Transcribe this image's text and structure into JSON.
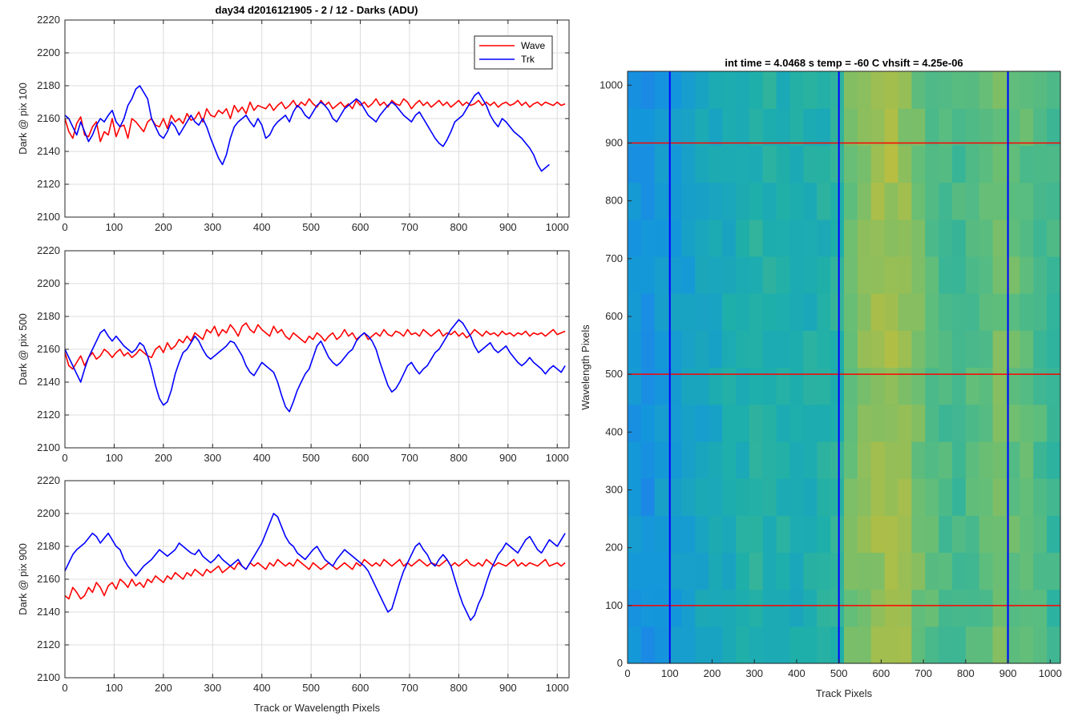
{
  "figure_title": "day34 d2016121905 - 2 / 12 - Darks (ADU)",
  "colors": {
    "wave": "#ff0000",
    "trk": "#0000ff",
    "grid": "#dcdcdc",
    "axis": "#262626"
  },
  "chart_data": [
    {
      "type": "line",
      "panel": "top-left",
      "title": "day34 d2016121905 - 2 / 12 - Darks (ADU)",
      "xlabel": "",
      "ylabel": "Dark @ pix 100",
      "xlim": [
        0,
        1024
      ],
      "ylim": [
        2100,
        2220
      ],
      "xticks": [
        0,
        100,
        200,
        300,
        400,
        500,
        600,
        700,
        800,
        900,
        1000
      ],
      "yticks": [
        2100,
        2120,
        2140,
        2160,
        2180,
        2200,
        2220
      ],
      "grid": true,
      "legend": {
        "location": "top-right",
        "entries": [
          "Wave",
          "Trk"
        ]
      },
      "series": [
        {
          "name": "Wave",
          "color": "#ff0000",
          "x_start": 0,
          "x_step": 8,
          "values": [
            2160,
            2152,
            2148,
            2157,
            2161,
            2150,
            2149,
            2155,
            2158,
            2146,
            2152,
            2150,
            2160,
            2149,
            2155,
            2156,
            2148,
            2160,
            2158,
            2155,
            2152,
            2158,
            2160,
            2156,
            2155,
            2160,
            2154,
            2162,
            2158,
            2160,
            2157,
            2163,
            2159,
            2160,
            2164,
            2158,
            2166,
            2162,
            2161,
            2165,
            2163,
            2166,
            2160,
            2168,
            2164,
            2167,
            2163,
            2170,
            2165,
            2168,
            2167,
            2166,
            2169,
            2165,
            2168,
            2170,
            2166,
            2168,
            2171,
            2167,
            2170,
            2168,
            2172,
            2169,
            2167,
            2171,
            2168,
            2170,
            2166,
            2168,
            2170,
            2167,
            2169,
            2166,
            2171,
            2168,
            2170,
            2167,
            2169,
            2172,
            2168,
            2170,
            2167,
            2171,
            2169,
            2168,
            2172,
            2170,
            2166,
            2169,
            2171,
            2168,
            2170,
            2167,
            2169,
            2171,
            2168,
            2170,
            2167,
            2169,
            2171,
            2168,
            2170,
            2168,
            2169,
            2171,
            2168,
            2170,
            2168,
            2170,
            2167,
            2169,
            2170,
            2168,
            2169,
            2171,
            2168,
            2170,
            2167,
            2169,
            2170,
            2168,
            2170,
            2169,
            2168,
            2170,
            2168,
            2169
          ]
        },
        {
          "name": "Trk",
          "color": "#0000ff",
          "x_start": 0,
          "x_step": 8,
          "values": [
            2162,
            2160,
            2155,
            2150,
            2158,
            2152,
            2146,
            2150,
            2156,
            2160,
            2158,
            2162,
            2165,
            2158,
            2155,
            2160,
            2168,
            2172,
            2178,
            2180,
            2176,
            2172,
            2160,
            2155,
            2150,
            2148,
            2152,
            2158,
            2155,
            2150,
            2154,
            2158,
            2162,
            2158,
            2156,
            2160,
            2155,
            2148,
            2142,
            2136,
            2132,
            2138,
            2148,
            2155,
            2158,
            2160,
            2162,
            2158,
            2155,
            2160,
            2156,
            2148,
            2150,
            2155,
            2158,
            2160,
            2162,
            2158,
            2164,
            2168,
            2166,
            2162,
            2160,
            2164,
            2168,
            2170,
            2168,
            2165,
            2160,
            2158,
            2162,
            2166,
            2168,
            2170,
            2172,
            2170,
            2166,
            2162,
            2160,
            2158,
            2162,
            2165,
            2168,
            2170,
            2168,
            2165,
            2162,
            2160,
            2158,
            2162,
            2164,
            2160,
            2156,
            2152,
            2148,
            2145,
            2143,
            2147,
            2152,
            2158,
            2160,
            2162,
            2166,
            2170,
            2174,
            2176,
            2172,
            2168,
            2162,
            2158,
            2155,
            2160,
            2158,
            2155,
            2152,
            2150,
            2148,
            2145,
            2142,
            2138,
            2132,
            2128,
            2130,
            2132
          ]
        }
      ]
    },
    {
      "type": "line",
      "panel": "middle-left",
      "title": "",
      "xlabel": "",
      "ylabel": "Dark @ pix 500",
      "xlim": [
        0,
        1024
      ],
      "ylim": [
        2100,
        2220
      ],
      "xticks": [
        0,
        100,
        200,
        300,
        400,
        500,
        600,
        700,
        800,
        900,
        1000
      ],
      "yticks": [
        2100,
        2120,
        2140,
        2160,
        2180,
        2200,
        2220
      ],
      "grid": true,
      "series": [
        {
          "name": "Wave",
          "color": "#ff0000",
          "x_start": 0,
          "x_step": 8,
          "values": [
            2158,
            2150,
            2148,
            2152,
            2156,
            2150,
            2155,
            2158,
            2154,
            2156,
            2160,
            2158,
            2155,
            2158,
            2160,
            2156,
            2158,
            2155,
            2157,
            2160,
            2158,
            2156,
            2155,
            2160,
            2162,
            2158,
            2164,
            2160,
            2162,
            2166,
            2164,
            2168,
            2165,
            2170,
            2168,
            2166,
            2172,
            2170,
            2174,
            2168,
            2172,
            2170,
            2175,
            2172,
            2168,
            2174,
            2176,
            2172,
            2170,
            2175,
            2172,
            2170,
            2168,
            2174,
            2170,
            2172,
            2168,
            2166,
            2170,
            2168,
            2166,
            2164,
            2168,
            2166,
            2170,
            2168,
            2165,
            2168,
            2170,
            2166,
            2168,
            2172,
            2168,
            2170,
            2166,
            2168,
            2170,
            2166,
            2168,
            2170,
            2168,
            2172,
            2169,
            2168,
            2171,
            2170,
            2168,
            2172,
            2169,
            2170,
            2168,
            2172,
            2170,
            2168,
            2170,
            2172,
            2168,
            2170,
            2169,
            2171,
            2168,
            2170,
            2167,
            2169,
            2172,
            2170,
            2168,
            2171,
            2169,
            2170,
            2168,
            2171,
            2169,
            2170,
            2168,
            2170,
            2169,
            2171,
            2168,
            2170,
            2169,
            2170,
            2168,
            2170,
            2172,
            2169,
            2170,
            2171
          ]
        },
        {
          "name": "Trk",
          "color": "#0000ff",
          "x_start": 0,
          "x_step": 8,
          "values": [
            2160,
            2155,
            2150,
            2145,
            2140,
            2148,
            2155,
            2160,
            2165,
            2170,
            2172,
            2168,
            2165,
            2168,
            2165,
            2162,
            2160,
            2158,
            2160,
            2164,
            2162,
            2156,
            2148,
            2138,
            2130,
            2126,
            2128,
            2135,
            2145,
            2152,
            2158,
            2160,
            2164,
            2168,
            2165,
            2160,
            2156,
            2154,
            2156,
            2158,
            2160,
            2162,
            2165,
            2164,
            2160,
            2156,
            2150,
            2146,
            2144,
            2148,
            2152,
            2150,
            2148,
            2146,
            2140,
            2132,
            2125,
            2122,
            2128,
            2135,
            2140,
            2145,
            2148,
            2155,
            2162,
            2165,
            2160,
            2155,
            2152,
            2150,
            2152,
            2155,
            2158,
            2160,
            2165,
            2168,
            2170,
            2168,
            2165,
            2160,
            2152,
            2145,
            2138,
            2134,
            2136,
            2140,
            2145,
            2150,
            2152,
            2148,
            2145,
            2148,
            2150,
            2154,
            2158,
            2160,
            2164,
            2168,
            2172,
            2175,
            2178,
            2176,
            2172,
            2168,
            2162,
            2158,
            2160,
            2162,
            2164,
            2160,
            2158,
            2160,
            2162,
            2158,
            2155,
            2152,
            2150,
            2152,
            2155,
            2152,
            2150,
            2148,
            2145,
            2148,
            2150,
            2148,
            2146,
            2150
          ]
        }
      ]
    },
    {
      "type": "line",
      "panel": "bottom-left",
      "title": "",
      "xlabel": "Track or Wavelength Pixels",
      "ylabel": "Dark @ pix 900",
      "xlim": [
        0,
        1024
      ],
      "ylim": [
        2100,
        2220
      ],
      "xticks": [
        0,
        100,
        200,
        300,
        400,
        500,
        600,
        700,
        800,
        900,
        1000
      ],
      "yticks": [
        2100,
        2120,
        2140,
        2160,
        2180,
        2200,
        2220
      ],
      "grid": true,
      "series": [
        {
          "name": "Wave",
          "color": "#ff0000",
          "x_start": 0,
          "x_step": 8,
          "values": [
            2150,
            2148,
            2155,
            2152,
            2148,
            2150,
            2155,
            2152,
            2158,
            2155,
            2150,
            2156,
            2158,
            2154,
            2160,
            2158,
            2155,
            2160,
            2156,
            2158,
            2155,
            2160,
            2158,
            2162,
            2160,
            2158,
            2162,
            2160,
            2164,
            2162,
            2160,
            2164,
            2162,
            2166,
            2164,
            2162,
            2166,
            2164,
            2166,
            2168,
            2164,
            2166,
            2168,
            2166,
            2170,
            2168,
            2166,
            2170,
            2168,
            2170,
            2168,
            2166,
            2170,
            2168,
            2172,
            2170,
            2168,
            2170,
            2168,
            2172,
            2170,
            2168,
            2166,
            2170,
            2168,
            2166,
            2168,
            2170,
            2168,
            2166,
            2168,
            2170,
            2168,
            2166,
            2170,
            2168,
            2172,
            2170,
            2168,
            2170,
            2168,
            2172,
            2170,
            2168,
            2170,
            2172,
            2168,
            2170,
            2168,
            2170,
            2172,
            2170,
            2168,
            2170,
            2169,
            2168,
            2170,
            2172,
            2168,
            2170,
            2168,
            2170,
            2172,
            2169,
            2168,
            2170,
            2168,
            2172,
            2170,
            2168,
            2170,
            2169,
            2168,
            2170,
            2172,
            2168,
            2170,
            2168,
            2170,
            2169,
            2168,
            2170,
            2172,
            2168,
            2169,
            2170,
            2168,
            2170
          ]
        },
        {
          "name": "Trk",
          "color": "#0000ff",
          "x_start": 0,
          "x_step": 8,
          "values": [
            2165,
            2170,
            2175,
            2178,
            2180,
            2182,
            2185,
            2188,
            2186,
            2182,
            2185,
            2188,
            2184,
            2180,
            2178,
            2172,
            2168,
            2165,
            2162,
            2165,
            2168,
            2170,
            2172,
            2175,
            2178,
            2176,
            2174,
            2176,
            2178,
            2182,
            2180,
            2178,
            2176,
            2175,
            2178,
            2174,
            2172,
            2170,
            2172,
            2175,
            2172,
            2170,
            2168,
            2170,
            2172,
            2168,
            2166,
            2170,
            2174,
            2178,
            2182,
            2188,
            2194,
            2200,
            2198,
            2192,
            2186,
            2182,
            2180,
            2176,
            2174,
            2172,
            2175,
            2178,
            2180,
            2176,
            2172,
            2170,
            2168,
            2172,
            2175,
            2178,
            2176,
            2174,
            2172,
            2170,
            2168,
            2165,
            2160,
            2155,
            2150,
            2145,
            2140,
            2142,
            2150,
            2158,
            2165,
            2170,
            2175,
            2180,
            2182,
            2178,
            2175,
            2170,
            2168,
            2172,
            2175,
            2172,
            2168,
            2160,
            2152,
            2145,
            2140,
            2135,
            2138,
            2145,
            2150,
            2158,
            2165,
            2170,
            2175,
            2178,
            2182,
            2180,
            2178,
            2176,
            2180,
            2184,
            2186,
            2182,
            2178,
            2176,
            2180,
            2184,
            2182,
            2180,
            2184,
            2188
          ]
        }
      ]
    },
    {
      "type": "heatmap",
      "panel": "right",
      "title": "int time = 4.0468 s    temp = -60 C    vhsift = 4.25e-06",
      "xlabel": "Track Pixels",
      "ylabel": "Wavelength Pixels",
      "xlim": [
        0,
        1024
      ],
      "ylim": [
        0,
        1024
      ],
      "xticks": [
        0,
        100,
        200,
        300,
        400,
        500,
        600,
        700,
        800,
        900,
        1000
      ],
      "yticks": [
        0,
        100,
        200,
        300,
        400,
        500,
        600,
        700,
        800,
        900,
        1000
      ],
      "colormap": "parula",
      "vertical_markers": {
        "color": "#0000ff",
        "x": [
          100,
          500,
          900
        ]
      },
      "horizontal_markers": {
        "color": "#ff0000",
        "y": [
          100,
          500,
          900
        ]
      },
      "column_profile": {
        "x_start": 0,
        "x_step": 32,
        "values": [
          0.3,
          0.28,
          0.32,
          0.34,
          0.36,
          0.38,
          0.4,
          0.42,
          0.44,
          0.46,
          0.45,
          0.44,
          0.43,
          0.44,
          0.45,
          0.47,
          0.62,
          0.66,
          0.68,
          0.7,
          0.67,
          0.62,
          0.58,
          0.55,
          0.54,
          0.56,
          0.58,
          0.62,
          0.6,
          0.58,
          0.55,
          0.52
        ]
      }
    }
  ]
}
